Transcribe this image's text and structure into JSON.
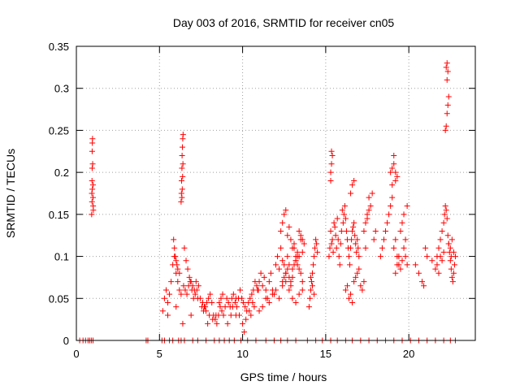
{
  "chart_data": {
    "type": "scatter",
    "title": "Day 003 of 2016, SRMTID for receiver cn05",
    "xlabel": "GPS time / hours",
    "ylabel": "SRMTID / TECUs",
    "xlim": [
      0,
      24
    ],
    "ylim": [
      0,
      0.35
    ],
    "xticks": [
      0,
      5,
      10,
      15,
      20
    ],
    "xtick_labels": [
      "0",
      "5",
      "10",
      "15",
      "20"
    ],
    "yticks": [
      0,
      0.05,
      0.1,
      0.15,
      0.2,
      0.25,
      0.3,
      0.35
    ],
    "ytick_labels": [
      "0",
      "0.05",
      "0.1",
      "0.15",
      "0.2",
      "0.25",
      "0.3",
      "0.35"
    ],
    "grid": true,
    "marker": "+",
    "series": [
      {
        "name": "SRMTID",
        "color": "#ff0000",
        "x": [
          0.2,
          0.4,
          0.55,
          0.7,
          0.8,
          0.9,
          1.0,
          4.2,
          4.3,
          5.15,
          5.3,
          5.6,
          5.8,
          6.15,
          6.3,
          6.5,
          7.0,
          7.3,
          7.8,
          8.3,
          8.6,
          8.9,
          9.2,
          9.5,
          9.9,
          10.3,
          10.8,
          11.4,
          11.9,
          12.3,
          12.7,
          13.2,
          13.9,
          14.4,
          14.8,
          15.3,
          15.7,
          16.2,
          16.6,
          17.1,
          17.6,
          18.1,
          18.6,
          19.1,
          19.6,
          20.1,
          20.6,
          21.1,
          21.6,
          22.1,
          22.5,
          22.8,
          0.92,
          0.93,
          0.94,
          0.95,
          0.95,
          0.96,
          0.97,
          0.98,
          1.0,
          1.01,
          1.02,
          0.94,
          0.96,
          1.0,
          6.3,
          6.32,
          6.33,
          6.35,
          6.36,
          6.38,
          6.4,
          6.42,
          6.35,
          6.37,
          6.39,
          6.41,
          5.2,
          5.3,
          5.4,
          5.5,
          5.6,
          5.7,
          5.8,
          5.9,
          6.0,
          6.1,
          6.2,
          6.3,
          6.45,
          6.55,
          6.65,
          6.75,
          6.85,
          6.95,
          7.05,
          7.15,
          7.25,
          7.35,
          7.45,
          7.55,
          7.65,
          7.75,
          7.85,
          7.95,
          8.05,
          8.15,
          8.25,
          8.35,
          8.45,
          8.55,
          8.65,
          8.75,
          8.85,
          8.95,
          9.05,
          9.15,
          9.25,
          9.35,
          9.45,
          9.55,
          9.65,
          9.75,
          9.85,
          9.95,
          10.05,
          10.15,
          10.25,
          10.35,
          10.45,
          10.55,
          10.65,
          10.75,
          10.85,
          10.95,
          5.85,
          5.9,
          5.95,
          6.0,
          6.05,
          6.1,
          6.2,
          6.5,
          6.6,
          6.7,
          6.8,
          6.9,
          7.0,
          7.1,
          7.2,
          7.6,
          7.7,
          7.8,
          8.0,
          8.2,
          8.6,
          8.7,
          8.8,
          9.3,
          9.4,
          9.6,
          9.8,
          10.0,
          10.2,
          10.4,
          10.6,
          5.5,
          6.0,
          6.4,
          6.9,
          7.3,
          7.9,
          8.4,
          9.1,
          9.6,
          10.1,
          10.5,
          10.7,
          11.0,
          10.9,
          11.0,
          11.1,
          11.2,
          11.3,
          11.4,
          11.5,
          11.6,
          11.7,
          11.8,
          11.9,
          12.0,
          12.1,
          12.2,
          12.3,
          12.4,
          12.5,
          12.6,
          12.7,
          12.8,
          12.9,
          13.0,
          13.1,
          13.2,
          13.3,
          13.4,
          13.5,
          13.6,
          11.2,
          11.4,
          11.6,
          11.8,
          12.0,
          12.2,
          12.4,
          12.6,
          12.8,
          13.0,
          13.2,
          13.4,
          13.6,
          12.3,
          12.4,
          12.5,
          12.6,
          12.7,
          12.8,
          12.9,
          13.0,
          13.1,
          13.2,
          13.3,
          13.4,
          13.5,
          13.6,
          13.7,
          12.4,
          12.5,
          12.6,
          12.7,
          12.8,
          12.9,
          13.0,
          13.1,
          13.2,
          13.3,
          13.4,
          13.5,
          13.6,
          14.0,
          14.05,
          14.1,
          14.15,
          14.2,
          14.25,
          14.3,
          14.35,
          14.4,
          14.45,
          14.5,
          14.2,
          14.3,
          14.1,
          15.2,
          15.25,
          15.3,
          15.35,
          15.4,
          15.45,
          15.5,
          15.55,
          15.6,
          15.65,
          15.7,
          15.75,
          15.8,
          15.85,
          15.9,
          15.95,
          16.0,
          16.05,
          16.1,
          16.15,
          16.2,
          16.25,
          16.3,
          16.35,
          16.4,
          16.45,
          16.5,
          16.55,
          16.6,
          16.65,
          16.7,
          16.75,
          16.8,
          16.85,
          16.9,
          16.95,
          17.0,
          15.3,
          15.35,
          15.4,
          15.3,
          15.35,
          16.5,
          16.6,
          16.7,
          16.2,
          16.3,
          16.4,
          16.5,
          16.6,
          16.7,
          16.8,
          16.9,
          17.0,
          17.1,
          17.2,
          17.3,
          17.3,
          17.4,
          17.5,
          17.6,
          17.7,
          17.8,
          17.9,
          18.0,
          17.5,
          17.6,
          17.4,
          18.3,
          18.4,
          18.5,
          18.6,
          18.7,
          18.8,
          18.9,
          19.0,
          19.1,
          19.2,
          19.3,
          19.4,
          19.5,
          19.6,
          19.7,
          19.8,
          19.9,
          18.9,
          19.0,
          19.1,
          19.2,
          19.3,
          19.1,
          19.2,
          19.0,
          19.2,
          19.3,
          19.4,
          19.5,
          19.6,
          19.7,
          19.8,
          19.9,
          20.4,
          20.6,
          20.8,
          20.9,
          21.0,
          21.1,
          21.4,
          21.7,
          21.8,
          21.9,
          22.0,
          22.1,
          22.15,
          22.2,
          22.25,
          22.3,
          22.35,
          22.4,
          22.45,
          22.5,
          22.55,
          22.6,
          22.65,
          22.7,
          22.75,
          22.8,
          22.5,
          22.6,
          22.7,
          22.4,
          22.55,
          22.2,
          22.25,
          22.3,
          22.35,
          22.4,
          22.3,
          22.35,
          22.25,
          22.3,
          21.6,
          21.7,
          21.9,
          22.1,
          22.0,
          21.8
        ],
        "y": [
          0,
          0,
          0,
          0,
          0,
          0,
          0,
          0,
          0,
          0,
          0,
          0,
          0,
          0,
          0,
          0,
          0,
          0,
          0,
          0,
          0,
          0,
          0,
          0,
          0,
          0,
          0,
          0,
          0,
          0,
          0,
          0,
          0,
          0,
          0,
          0,
          0,
          0,
          0,
          0,
          0,
          0,
          0,
          0,
          0,
          0,
          0,
          0,
          0,
          0,
          0,
          0,
          0.15,
          0.175,
          0.19,
          0.205,
          0.225,
          0.235,
          0.24,
          0.21,
          0.17,
          0.16,
          0.155,
          0.165,
          0.18,
          0.185,
          0.165,
          0.175,
          0.19,
          0.205,
          0.22,
          0.23,
          0.24,
          0.245,
          0.17,
          0.18,
          0.195,
          0.21,
          0.035,
          0.05,
          0.06,
          0.045,
          0.055,
          0.07,
          0.09,
          0.1,
          0.08,
          0.07,
          0.06,
          0.055,
          0.065,
          0.06,
          0.055,
          0.065,
          0.07,
          0.06,
          0.05,
          0.055,
          0.06,
          0.065,
          0.05,
          0.04,
          0.035,
          0.04,
          0.045,
          0.05,
          0.055,
          0.045,
          0.03,
          0.025,
          0.02,
          0.03,
          0.04,
          0.035,
          0.03,
          0.04,
          0.05,
          0.045,
          0.04,
          0.05,
          0.055,
          0.045,
          0.04,
          0.05,
          0.06,
          0.05,
          0.045,
          0.04,
          0.035,
          0.045,
          0.05,
          0.055,
          0.06,
          0.07,
          0.065,
          0.06,
          0.12,
          0.11,
          0.1,
          0.095,
          0.09,
          0.085,
          0.08,
          0.11,
          0.095,
          0.085,
          0.075,
          0.07,
          0.065,
          0.06,
          0.07,
          0.045,
          0.04,
          0.035,
          0.03,
          0.025,
          0.045,
          0.05,
          0.055,
          0.03,
          0.04,
          0.05,
          0.03,
          0.02,
          0.025,
          0.035,
          0.045,
          0.03,
          0.04,
          0.02,
          0.03,
          0.05,
          0.02,
          0.03,
          0.02,
          0.03,
          0.01,
          0.03,
          0.04,
          0.035,
          0.06,
          0.07,
          0.08,
          0.065,
          0.075,
          0.06,
          0.05,
          0.07,
          0.08,
          0.06,
          0.055,
          0.09,
          0.1,
          0.085,
          0.11,
          0.095,
          0.09,
          0.08,
          0.1,
          0.075,
          0.07,
          0.085,
          0.11,
          0.095,
          0.09,
          0.1,
          0.12,
          0.105,
          0.04,
          0.05,
          0.045,
          0.055,
          0.06,
          0.05,
          0.065,
          0.07,
          0.06,
          0.05,
          0.045,
          0.055,
          0.06,
          0.13,
          0.14,
          0.15,
          0.155,
          0.125,
          0.135,
          0.12,
          0.11,
          0.115,
          0.1,
          0.105,
          0.13,
          0.125,
          0.12,
          0.115,
          0.07,
          0.075,
          0.08,
          0.085,
          0.09,
          0.065,
          0.075,
          0.09,
          0.095,
          0.1,
          0.085,
          0.08,
          0.07,
          0.04,
          0.05,
          0.06,
          0.07,
          0.08,
          0.09,
          0.1,
          0.11,
          0.12,
          0.115,
          0.105,
          0.065,
          0.055,
          0.075,
          0.1,
          0.11,
          0.13,
          0.115,
          0.12,
          0.105,
          0.14,
          0.135,
          0.125,
          0.11,
          0.145,
          0.12,
          0.1,
          0.09,
          0.115,
          0.13,
          0.155,
          0.14,
          0.15,
          0.16,
          0.145,
          0.13,
          0.12,
          0.11,
          0.1,
          0.09,
          0.11,
          0.12,
          0.13,
          0.135,
          0.14,
          0.125,
          0.115,
          0.105,
          0.12,
          0.11,
          0.1,
          0.2,
          0.21,
          0.22,
          0.19,
          0.225,
          0.175,
          0.185,
          0.19,
          0.06,
          0.065,
          0.05,
          0.055,
          0.045,
          0.07,
          0.075,
          0.08,
          0.085,
          0.065,
          0.06,
          0.07,
          0.13,
          0.14,
          0.15,
          0.17,
          0.16,
          0.175,
          0.12,
          0.13,
          0.145,
          0.155,
          0.11,
          0.1,
          0.11,
          0.12,
          0.13,
          0.14,
          0.15,
          0.16,
          0.17,
          0.11,
          0.12,
          0.1,
          0.09,
          0.13,
          0.14,
          0.15,
          0.12,
          0.16,
          0.2,
          0.205,
          0.21,
          0.19,
          0.195,
          0.22,
          0.2,
          0.185,
          0.08,
          0.09,
          0.1,
          0.085,
          0.095,
          0.11,
          0.1,
          0.09,
          0.09,
          0.08,
          0.07,
          0.065,
          0.11,
          0.1,
          0.095,
          0.1,
          0.11,
          0.12,
          0.13,
          0.14,
          0.15,
          0.16,
          0.155,
          0.145,
          0.125,
          0.115,
          0.105,
          0.095,
          0.085,
          0.075,
          0.07,
          0.08,
          0.09,
          0.1,
          0.11,
          0.12,
          0.105,
          0.115,
          0.1,
          0.25,
          0.255,
          0.27,
          0.28,
          0.29,
          0.31,
          0.32,
          0.325,
          0.33,
          0.085,
          0.09,
          0.1,
          0.105,
          0.095,
          0.08
        ]
      }
    ]
  }
}
